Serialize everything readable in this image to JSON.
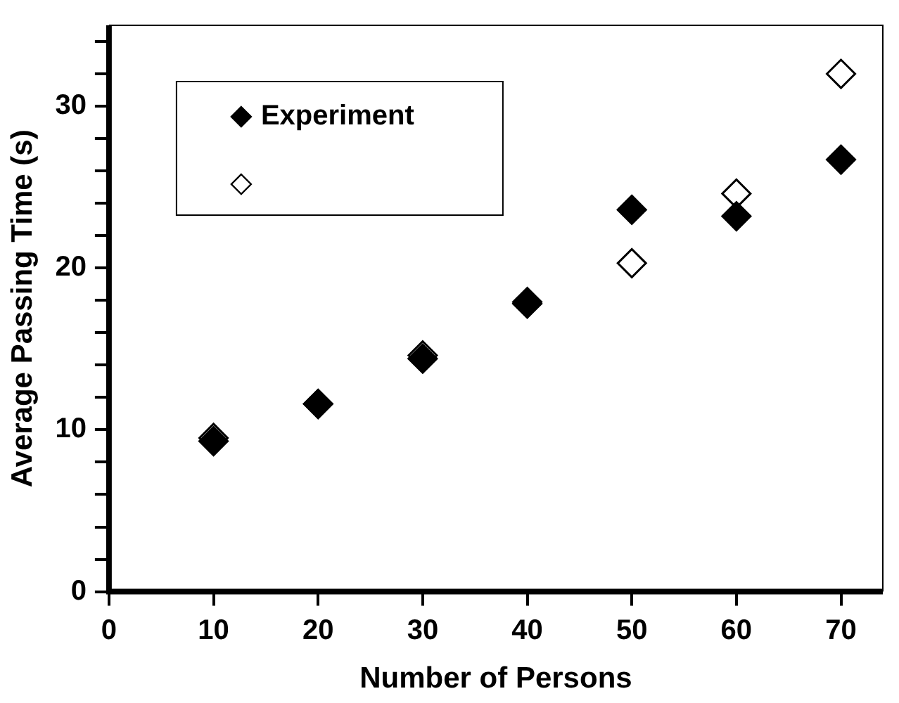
{
  "chart_data": {
    "type": "scatter",
    "xlabel": "Number of Persons",
    "ylabel": "Average Passing Time (s)",
    "x": [
      10,
      20,
      30,
      40,
      50,
      60,
      70
    ],
    "series": [
      {
        "name": "Experiment",
        "color": "#000000",
        "marker": "diamond",
        "values": [
          9.3,
          11.6,
          14.4,
          17.8,
          23.6,
          23.2,
          26.7
        ]
      },
      {
        "color": "#000000",
        "marker": "diamond",
        "values": [
          9.5,
          11.6,
          14.6,
          17.9,
          20.3,
          24.6,
          32.0
        ]
      }
    ],
    "xlim": [
      0,
      74
    ],
    "xticks": [
      0,
      10,
      20,
      30,
      40,
      50,
      60,
      70
    ],
    "ylim": [
      0,
      35
    ],
    "yticks": [
      0,
      {
        "value": 2,
        "label": null
      },
      {
        "value": 4,
        "label": null
      },
      {
        "value": 6,
        "label": null
      },
      {
        "value": 8,
        "label": null
      },
      10,
      {
        "value": 12,
        "label": null
      },
      {
        "value": 14,
        "label": null
      },
      {
        "value": 16,
        "label": null
      },
      {
        "value": 18,
        "label": null
      },
      20,
      {
        "value": 22,
        "label": null
      },
      {
        "value": 24,
        "label": null
      },
      {
        "value": 26,
        "label": null
      },
      {
        "value": 28,
        "label": null
      },
      30,
      {
        "value": 32,
        "label": null
      },
      {
        "value": 34,
        "label": null
      }
    ],
    "grid": false,
    "legend": "top left"
  }
}
